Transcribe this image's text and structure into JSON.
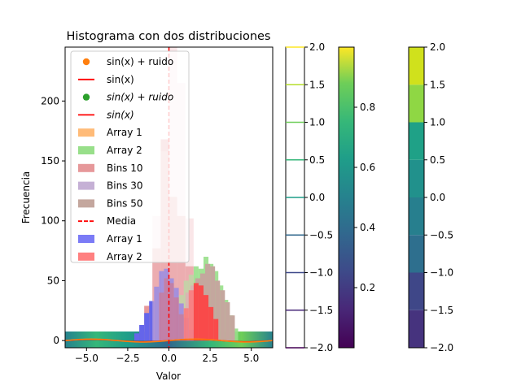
{
  "chart_data": {
    "type": "bar",
    "title": "Histograma con dos distribuciones",
    "xlabel": "Valor",
    "ylabel": "Frecuencia",
    "xlim": [
      -6.3,
      6.3
    ],
    "ylim": [
      -6,
      245
    ],
    "xticks": [
      -5.0,
      -2.5,
      0.0,
      2.5,
      5.0
    ],
    "xtick_labels": [
      "−5.0",
      "−2.5",
      "0.0",
      "2.5",
      "5.0"
    ],
    "yticks": [
      0,
      50,
      100,
      150,
      200
    ],
    "yticks_labels": [
      "0",
      "50",
      "100",
      "150",
      "200"
    ],
    "grid": false,
    "mean_line_x": 0.0,
    "legend": {
      "placement": "upper-left",
      "entries": [
        {
          "label": "sin(x) + ruido",
          "kind": "marker",
          "color": "#ff7f0e"
        },
        {
          "label": "sin(x)",
          "kind": "line",
          "color": "#ff0000"
        },
        {
          "label": "sin(x) + ruido",
          "kind": "marker",
          "color": "#2ca02c",
          "math": true
        },
        {
          "label": "sin(x)",
          "kind": "line",
          "color": "#ff0000",
          "math": true
        },
        {
          "label": "Array 1",
          "kind": "patch",
          "color": "#ffbb78"
        },
        {
          "label": "Array 2",
          "kind": "patch",
          "color": "#98df8a"
        },
        {
          "label": "Bins 10",
          "kind": "patch",
          "color": "#e6989a"
        },
        {
          "label": "Bins 30",
          "kind": "patch",
          "color": "#c5b0d5"
        },
        {
          "label": "Bins 50",
          "kind": "patch",
          "color": "#c4a79e"
        },
        {
          "label": "Media",
          "kind": "dashed",
          "color": "#ff0000"
        },
        {
          "label": "Array 1",
          "kind": "patch",
          "color": "#7b7bf6"
        },
        {
          "label": "Array 2",
          "kind": "patch",
          "color": "#ff8080"
        }
      ]
    },
    "series": [
      {
        "name": "Bins 10",
        "color": "#e6989a",
        "opacity": 1.0,
        "bins": [
          [
            -1.5,
            -1.0,
            29
          ],
          [
            -1.0,
            -0.5,
            77
          ],
          [
            -0.5,
            0.0,
            168
          ],
          [
            0.0,
            0.5,
            120
          ],
          [
            0.5,
            1.0,
            104
          ],
          [
            1.0,
            1.5,
            62
          ]
        ]
      },
      {
        "name": "Array 2",
        "color": "#98df8a",
        "opacity": 0.9,
        "bins": [
          [
            0.3,
            0.6,
            25
          ],
          [
            0.6,
            0.9,
            38
          ],
          [
            0.9,
            1.2,
            50
          ],
          [
            1.2,
            1.5,
            55
          ],
          [
            1.5,
            1.8,
            62
          ],
          [
            1.8,
            2.1,
            60
          ],
          [
            2.1,
            2.4,
            70
          ],
          [
            2.4,
            2.7,
            64
          ],
          [
            2.7,
            3.0,
            58
          ],
          [
            3.0,
            3.3,
            46
          ],
          [
            3.3,
            3.6,
            34
          ],
          [
            3.6,
            3.9,
            21
          ],
          [
            3.9,
            4.2,
            10
          ]
        ]
      },
      {
        "name": "Bins 50",
        "color": "#c4a79e",
        "opacity": 1.0,
        "bins": [
          [
            1.0,
            1.3,
            40
          ],
          [
            1.3,
            1.6,
            46
          ],
          [
            1.6,
            1.9,
            52
          ],
          [
            1.9,
            2.2,
            56
          ],
          [
            2.2,
            2.5,
            64
          ],
          [
            2.5,
            2.8,
            62
          ],
          [
            2.8,
            3.1,
            50
          ],
          [
            3.1,
            3.4,
            42
          ],
          [
            3.4,
            3.7,
            32
          ],
          [
            3.7,
            4.0,
            21
          ]
        ]
      },
      {
        "name": "Array 1",
        "color": "#6565ea",
        "opacity": 1.0,
        "bins": [
          [
            -2.1,
            -1.8,
            6
          ],
          [
            -1.8,
            -1.5,
            13
          ],
          [
            -1.5,
            -1.2,
            23
          ],
          [
            -1.2,
            -0.9,
            33
          ],
          [
            -0.9,
            -0.6,
            45
          ],
          [
            -0.6,
            -0.3,
            58
          ],
          [
            -0.3,
            0.0,
            60
          ],
          [
            0.0,
            0.3,
            52
          ],
          [
            0.3,
            0.6,
            44
          ],
          [
            0.6,
            0.9,
            31
          ],
          [
            0.9,
            1.2,
            19
          ],
          [
            1.2,
            1.5,
            9
          ]
        ]
      },
      {
        "name": "Array 2",
        "color": "#ff4040",
        "opacity": 0.9,
        "bins": [
          [
            0.9,
            1.2,
            27
          ],
          [
            1.2,
            1.5,
            42
          ],
          [
            1.5,
            1.8,
            48
          ],
          [
            1.8,
            2.1,
            46
          ],
          [
            2.1,
            2.4,
            38
          ],
          [
            2.4,
            2.7,
            28
          ],
          [
            2.7,
            3.0,
            18
          ]
        ]
      },
      {
        "name": "Bins 30",
        "color": "#a23f78",
        "opacity": 0.85,
        "bins": [
          [
            -0.6,
            -0.3,
            40
          ],
          [
            -0.3,
            0.0,
            52
          ],
          [
            0.0,
            0.3,
            48
          ],
          [
            0.3,
            0.6,
            36
          ],
          [
            0.6,
            0.9,
            22
          ]
        ]
      },
      {
        "name": "Bins 10",
        "color": "#f4c8cb",
        "opacity": 0.45,
        "bins": [
          [
            -1.0,
            -0.5,
            104
          ],
          [
            -0.5,
            0.0,
            158
          ],
          [
            0.0,
            0.5,
            245
          ],
          [
            0.5,
            1.0,
            215
          ],
          [
            1.0,
            1.5,
            102
          ]
        ]
      }
    ],
    "sine_curves": [
      {
        "name": "sin(x)",
        "color": "#ff0000",
        "amplitude": 1.0
      },
      {
        "name": "sin(x) + ruido",
        "color": "#ff7f0e",
        "amplitude": 1.25
      }
    ],
    "colorbars": [
      {
        "kind": "contour-lines",
        "ticks": [
          2.0,
          1.5,
          1.0,
          0.5,
          0.0,
          -0.5,
          -1.0,
          -1.5,
          -2.0
        ],
        "tick_labels": [
          "2.0",
          "1.5",
          "1.0",
          "0.5",
          "0.0",
          "−0.5",
          "−1.0",
          "−1.5",
          "−2.0"
        ],
        "range": [
          -2.0,
          2.0
        ]
      },
      {
        "kind": "continuous",
        "ticks": [
          0.8,
          0.6,
          0.4,
          0.2
        ],
        "tick_labels": [
          "0.8",
          "0.6",
          "0.4",
          "0.2"
        ],
        "range": [
          0.0,
          1.0
        ]
      },
      {
        "kind": "filled-levels",
        "ticks": [
          2.0,
          1.5,
          1.0,
          0.5,
          0.0,
          -0.5,
          -1.0,
          -1.5,
          -2.0
        ],
        "tick_labels": [
          "2.0",
          "1.5",
          "1.0",
          "0.5",
          "0.0",
          "−0.5",
          "−1.0",
          "−1.5",
          "−2.0"
        ],
        "range": [
          -2.0,
          2.0
        ]
      }
    ]
  }
}
